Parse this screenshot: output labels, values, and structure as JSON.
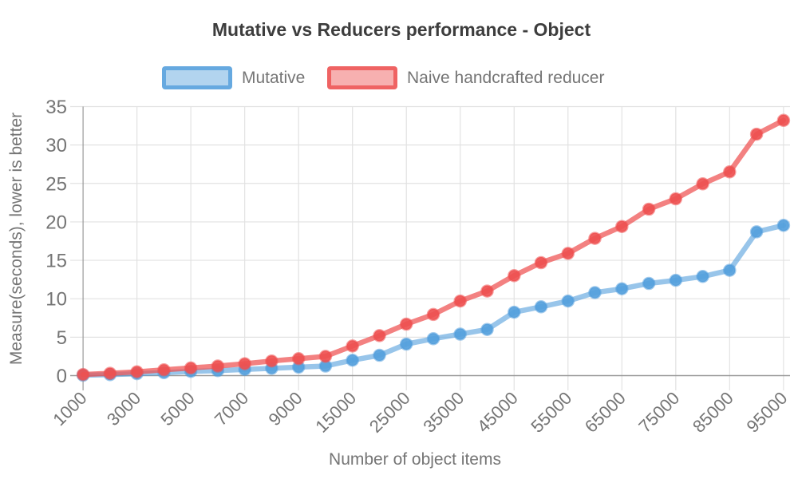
{
  "chart_data": {
    "type": "line",
    "title": "Mutative vs Reducers performance - Object",
    "xlabel": "Number of object items",
    "ylabel": "Measure(seconds), lower is better",
    "legend_position": "top",
    "grid": true,
    "ylim": [
      0,
      35
    ],
    "y_ticks": [
      0,
      5,
      10,
      15,
      20,
      25,
      30,
      35
    ],
    "categories": [
      1000,
      2000,
      3000,
      4000,
      5000,
      6000,
      7000,
      8000,
      9000,
      10000,
      15000,
      20000,
      25000,
      30000,
      35000,
      40000,
      45000,
      50000,
      55000,
      60000,
      65000,
      70000,
      75000,
      80000,
      85000,
      90000,
      95000
    ],
    "x_tick_labels": [
      "1000",
      "3000",
      "5000",
      "7000",
      "9000",
      "15000",
      "25000",
      "35000",
      "45000",
      "55000",
      "65000",
      "75000",
      "85000",
      "95000"
    ],
    "series": [
      {
        "name": "Mutative",
        "color": "#549fdc",
        "values": [
          0.05,
          0.12,
          0.25,
          0.38,
          0.55,
          0.65,
          0.8,
          0.95,
          1.1,
          1.25,
          2.0,
          2.65,
          4.1,
          4.8,
          5.4,
          6.0,
          8.25,
          8.95,
          9.7,
          10.8,
          11.3,
          12.0,
          12.4,
          12.9,
          13.7,
          18.7,
          19.55
        ]
      },
      {
        "name": "Naive handcrafted reducer",
        "color": "#ee5050",
        "values": [
          0.15,
          0.3,
          0.5,
          0.75,
          1.0,
          1.25,
          1.55,
          1.9,
          2.2,
          2.5,
          3.85,
          5.2,
          6.7,
          7.95,
          9.7,
          11.0,
          13.0,
          14.7,
          15.9,
          17.85,
          19.4,
          21.65,
          23.0,
          24.95,
          26.5,
          31.4,
          33.2
        ]
      }
    ],
    "grid_color": "#e2e2e2",
    "axis_color": "#999999",
    "text_color": "#757575",
    "title_color": "#3d3d3d"
  }
}
